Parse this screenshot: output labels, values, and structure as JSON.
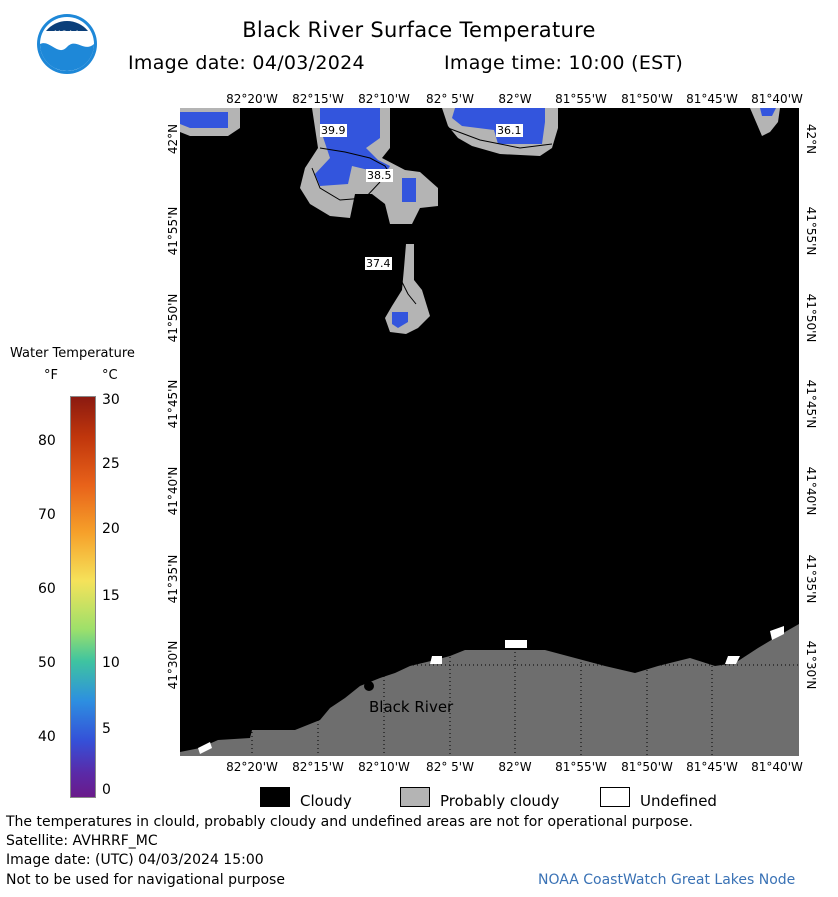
{
  "title": "Black River Surface Temperature",
  "image_date_label": "Image date: 04/03/2024",
  "image_time_label": "Image time: 10:00 (EST)",
  "logo_text": "NOAA",
  "lon_labels": [
    "82°20'W",
    "82°15'W",
    "82°10'W",
    "82° 5'W",
    "82°W",
    "81°55'W",
    "81°50'W",
    "81°45'W",
    "81°40'W"
  ],
  "lat_labels": [
    "42°N",
    "41°55'N",
    "41°50'N",
    "41°45'N",
    "41°40'N",
    "41°35'N",
    "41°30'N"
  ],
  "temperature_labels": [
    "39.9",
    "36.1",
    "38.5",
    "37.4"
  ],
  "place_label": "Black River",
  "legend": {
    "title": "Water Temperature",
    "f_unit": "°F",
    "c_unit": "°C",
    "f_ticks": [
      "80",
      "70",
      "60",
      "50",
      "40"
    ],
    "c_ticks": [
      "30",
      "25",
      "20",
      "15",
      "10",
      "5",
      "0"
    ]
  },
  "key": {
    "cloudy": "Cloudy",
    "probably_cloudy": "Probably cloudy",
    "undefined": "Undefined"
  },
  "footer": {
    "disclaimer": "The temperatures in clould, probably cloudy and undefined areas are not for operational purpose.",
    "satellite": "Satellite: AVHRRF_MC",
    "utc_date": "Image date: (UTC) 04/03/2024  15:00",
    "nav_warning": "Not to be used for navigational purpose",
    "credit": "NOAA CoastWatch Great Lakes Node"
  },
  "colors": {
    "cloud": "#000000",
    "probably_cloudy": "#b4b4b4",
    "land": "#6e6e6e",
    "water_cold": "#3355dd"
  }
}
